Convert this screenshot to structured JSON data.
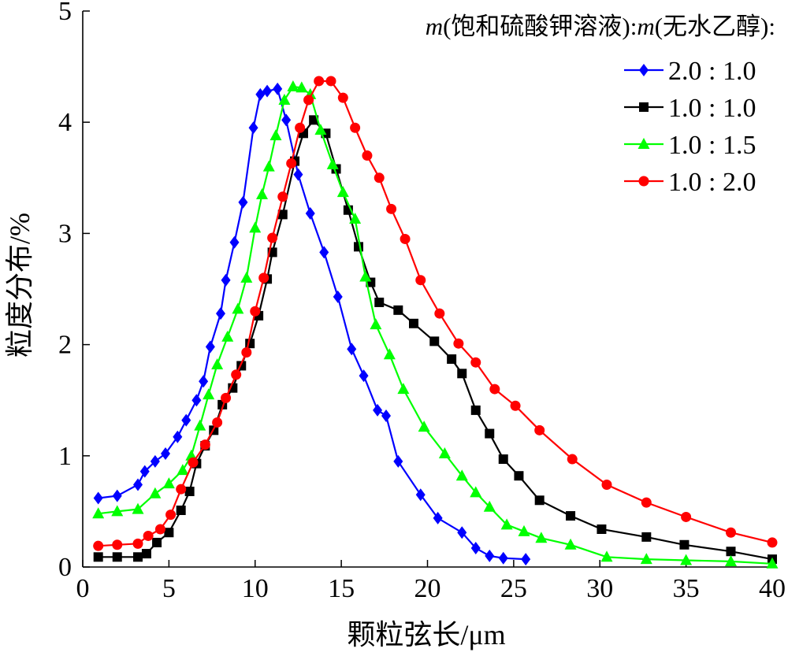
{
  "chart_data": {
    "type": "line",
    "xlabel": "颗粒弦长/μm",
    "ylabel": "粒度分布/%",
    "legend_title": {
      "m1": "m",
      "text1": "(饱和硫酸钾溶液):",
      "m2": "m",
      "text2": "(无水乙醇):"
    },
    "legend_position": "top-right",
    "xlim": [
      0,
      40
    ],
    "ylim": [
      0,
      5
    ],
    "xticks": [
      "0",
      "5",
      "10",
      "15",
      "20",
      "25",
      "30",
      "35",
      "40"
    ],
    "yticks": [
      "0",
      "1",
      "2",
      "3",
      "4",
      "5"
    ],
    "grid": false,
    "series": [
      {
        "name": "2.0 : 1.0",
        "color": "#0000ff",
        "marker": "diamond",
        "x": [
          0.9,
          2.0,
          3.2,
          3.6,
          4.2,
          4.8,
          5.5,
          6.0,
          6.6,
          7.0,
          7.4,
          8.0,
          8.3,
          8.8,
          9.3,
          9.9,
          10.3,
          10.7,
          11.3,
          11.8,
          12.5,
          13.2,
          14.0,
          14.8,
          15.6,
          16.3,
          17.1,
          17.6,
          18.3,
          19.6,
          20.6,
          22.0,
          22.8,
          23.6,
          24.4,
          25.7
        ],
        "y": [
          0.62,
          0.64,
          0.74,
          0.86,
          0.95,
          1.02,
          1.17,
          1.32,
          1.5,
          1.67,
          1.98,
          2.28,
          2.58,
          2.92,
          3.28,
          3.95,
          4.25,
          4.28,
          4.3,
          4.02,
          3.53,
          3.18,
          2.83,
          2.43,
          1.96,
          1.72,
          1.41,
          1.36,
          0.95,
          0.65,
          0.44,
          0.31,
          0.17,
          0.1,
          0.08,
          0.07
        ]
      },
      {
        "name": "1.0 : 1.0",
        "color": "#000000",
        "marker": "square",
        "x": [
          0.9,
          2.0,
          3.2,
          3.7,
          4.3,
          5.0,
          5.7,
          6.2,
          6.6,
          7.1,
          7.6,
          8.1,
          8.7,
          9.2,
          9.7,
          10.2,
          10.7,
          11.0,
          11.6,
          12.3,
          12.8,
          13.4,
          14.1,
          14.7,
          15.4,
          16.0,
          16.7,
          17.2,
          18.3,
          19.2,
          20.4,
          21.4,
          22.0,
          22.8,
          23.6,
          24.4,
          25.3,
          26.5,
          28.3,
          30.1,
          32.7,
          34.9,
          37.6,
          40.0
        ],
        "y": [
          0.09,
          0.09,
          0.09,
          0.12,
          0.22,
          0.31,
          0.51,
          0.68,
          0.93,
          1.09,
          1.23,
          1.46,
          1.61,
          1.81,
          2.01,
          2.26,
          2.59,
          2.83,
          3.17,
          3.65,
          3.9,
          4.02,
          3.9,
          3.58,
          3.21,
          2.88,
          2.56,
          2.38,
          2.31,
          2.19,
          2.03,
          1.87,
          1.74,
          1.41,
          1.2,
          0.97,
          0.82,
          0.6,
          0.46,
          0.34,
          0.27,
          0.2,
          0.14,
          0.07
        ]
      },
      {
        "name": "1.0 : 1.5",
        "color": "#00ff00",
        "marker": "triangle",
        "x": [
          0.9,
          2.0,
          3.2,
          4.2,
          5.0,
          5.8,
          6.3,
          6.8,
          7.3,
          7.8,
          8.4,
          9.0,
          9.5,
          10.0,
          10.4,
          10.8,
          11.2,
          11.7,
          12.2,
          12.7,
          13.2,
          13.8,
          14.5,
          15.1,
          15.8,
          16.4,
          17.0,
          17.8,
          18.6,
          19.8,
          21.0,
          22.0,
          22.8,
          23.6,
          24.6,
          25.6,
          26.6,
          28.3,
          30.4,
          32.7,
          35.0,
          37.6,
          40.0
        ],
        "y": [
          0.48,
          0.5,
          0.52,
          0.66,
          0.75,
          0.87,
          1.0,
          1.27,
          1.55,
          1.82,
          2.07,
          2.32,
          2.6,
          3.05,
          3.35,
          3.6,
          3.88,
          4.2,
          4.32,
          4.31,
          4.25,
          3.93,
          3.62,
          3.37,
          3.13,
          2.61,
          2.18,
          1.91,
          1.6,
          1.26,
          1.02,
          0.82,
          0.67,
          0.54,
          0.38,
          0.32,
          0.26,
          0.2,
          0.09,
          0.07,
          0.06,
          0.05,
          0.03
        ]
      },
      {
        "name": "1.0 : 2.0",
        "color": "#ff0000",
        "marker": "circle",
        "x": [
          0.9,
          2.0,
          3.2,
          3.8,
          4.5,
          5.1,
          5.7,
          6.4,
          7.1,
          7.8,
          8.3,
          8.9,
          9.5,
          10.0,
          10.5,
          11.0,
          11.6,
          12.1,
          12.6,
          13.1,
          13.7,
          14.4,
          15.1,
          15.8,
          16.5,
          17.2,
          17.9,
          18.7,
          19.6,
          20.7,
          21.8,
          22.8,
          23.9,
          25.1,
          26.5,
          28.4,
          30.4,
          32.7,
          35.0,
          37.6,
          40.0
        ],
        "y": [
          0.19,
          0.2,
          0.21,
          0.28,
          0.34,
          0.47,
          0.7,
          0.94,
          1.1,
          1.3,
          1.52,
          1.73,
          1.93,
          2.3,
          2.6,
          2.96,
          3.33,
          3.63,
          3.95,
          4.2,
          4.37,
          4.37,
          4.22,
          3.95,
          3.7,
          3.5,
          3.22,
          2.95,
          2.58,
          2.28,
          2.01,
          1.84,
          1.6,
          1.45,
          1.23,
          0.97,
          0.74,
          0.58,
          0.45,
          0.31,
          0.22
        ]
      }
    ]
  }
}
